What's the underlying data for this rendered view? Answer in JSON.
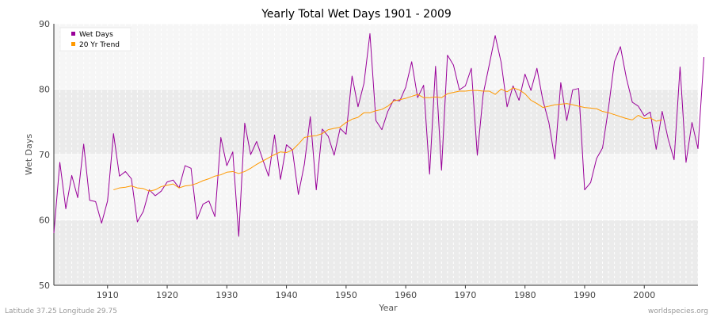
{
  "colors": {
    "wet_days": "#990099",
    "trend": "#ff9900",
    "band_dark": "#ebebeb",
    "band_light": "#f6f6f6",
    "grid": "#ffffff",
    "text": "#444444"
  },
  "footer": {
    "left": "Latitude 37.25 Longitude 29.75",
    "right": "worldspecies.org"
  },
  "chart_data": {
    "type": "line",
    "title": "Yearly Total Wet Days 1901 - 2009",
    "xlabel": "Year",
    "ylabel": "Wet Days",
    "xlim": [
      1901,
      2009
    ],
    "ylim": [
      50,
      90
    ],
    "xticks": [
      1910,
      1920,
      1930,
      1940,
      1950,
      1960,
      1970,
      1980,
      1990,
      2000
    ],
    "yticks": [
      50,
      60,
      70,
      80,
      90
    ],
    "grid": true,
    "legend_position": "top-left",
    "series": [
      {
        "name": "Wet Days",
        "x_start": 1901,
        "values": [
          58.0,
          68.8,
          61.7,
          66.8,
          63.4,
          71.6,
          63.0,
          62.8,
          59.5,
          62.9,
          73.2,
          66.7,
          67.4,
          66.3,
          59.7,
          61.3,
          64.6,
          63.7,
          64.4,
          65.8,
          66.1,
          64.9,
          68.3,
          67.9,
          60.1,
          62.4,
          62.9,
          60.5,
          72.6,
          68.3,
          70.4,
          57.5,
          74.8,
          70.0,
          72.0,
          69.3,
          66.7,
          73.0,
          66.2,
          71.5,
          70.7,
          63.9,
          68.5,
          75.8,
          64.6,
          73.9,
          72.8,
          69.9,
          74.0,
          73.1,
          82.0,
          77.3,
          80.9,
          88.5,
          75.2,
          73.8,
          76.6,
          78.4,
          78.2,
          80.3,
          84.2,
          78.7,
          80.6,
          67.0,
          83.5,
          67.6,
          85.2,
          83.7,
          79.9,
          80.5,
          83.2,
          69.9,
          79.3,
          83.7,
          88.2,
          84.1,
          77.3,
          80.5,
          78.3,
          82.3,
          79.8,
          83.2,
          78.3,
          74.9,
          69.3,
          81.0,
          75.2,
          79.9,
          80.1,
          64.6,
          65.7,
          69.4,
          71.0,
          77.1,
          84.2,
          86.5,
          81.7,
          78.0,
          77.4,
          75.9,
          76.5,
          70.8,
          76.6,
          72.4,
          69.2,
          83.4,
          68.8,
          74.9,
          70.9,
          84.9
        ]
      },
      {
        "name": "20 Yr Trend",
        "x_start": 1911,
        "values": [
          64.6,
          64.9,
          65.0,
          65.2,
          64.9,
          64.8,
          64.4,
          64.6,
          65.1,
          65.3,
          65.5,
          64.9,
          65.2,
          65.3,
          65.6,
          66.0,
          66.3,
          66.7,
          66.9,
          67.3,
          67.4,
          67.1,
          67.4,
          67.9,
          68.5,
          69.0,
          69.5,
          70.0,
          70.4,
          70.3,
          70.7,
          71.6,
          72.6,
          72.8,
          72.9,
          73.2,
          73.8,
          74.0,
          74.2,
          74.9,
          75.4,
          75.7,
          76.4,
          76.4,
          76.7,
          76.9,
          77.4,
          78.2,
          78.4,
          78.6,
          78.9,
          79.2,
          78.7,
          78.7,
          78.8,
          78.7,
          79.3,
          79.5,
          79.7,
          79.7,
          79.8,
          79.8,
          79.7,
          79.7,
          79.2,
          80.0,
          79.6,
          80.2,
          79.9,
          79.3,
          78.3,
          77.8,
          77.2,
          77.4,
          77.6,
          77.7,
          77.8,
          77.6,
          77.4,
          77.2,
          77.1,
          77.0,
          76.6,
          76.4,
          76.1,
          75.8,
          75.5,
          75.3,
          76.0,
          75.5,
          75.6,
          75.1,
          75.3
        ]
      }
    ]
  }
}
